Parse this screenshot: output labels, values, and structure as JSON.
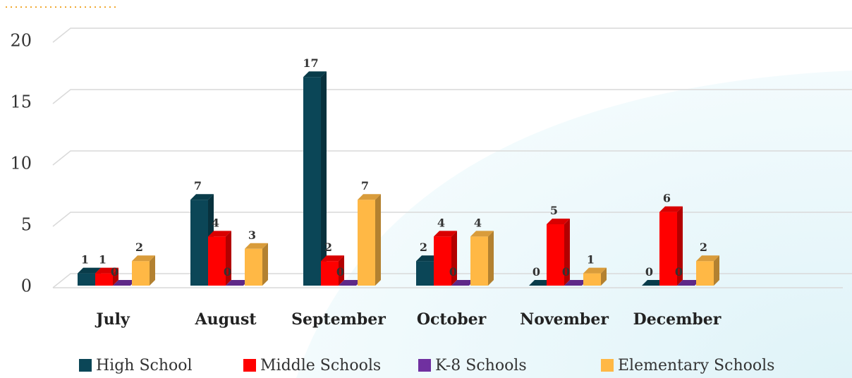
{
  "chart_data": {
    "type": "bar3d",
    "categories": [
      "July",
      "August",
      "September",
      "October",
      "November",
      "December"
    ],
    "series": [
      {
        "name": "High School",
        "color": "#0b4657",
        "values": [
          1,
          7,
          17,
          2,
          0,
          0
        ]
      },
      {
        "name": "Middle Schools",
        "color": "#ff0000",
        "values": [
          1,
          4,
          2,
          4,
          5,
          6
        ]
      },
      {
        "name": "K-8 Schools",
        "color": "#7030a0",
        "values": [
          0,
          0,
          0,
          0,
          0,
          0
        ]
      },
      {
        "name": "Elementary Schools",
        "color": "#ffb845",
        "values": [
          2,
          3,
          7,
          4,
          1,
          2
        ]
      }
    ],
    "ylim": [
      0,
      20
    ],
    "yticks": [
      0,
      5,
      10,
      15,
      20
    ],
    "grid": true,
    "legend": "bottom"
  }
}
